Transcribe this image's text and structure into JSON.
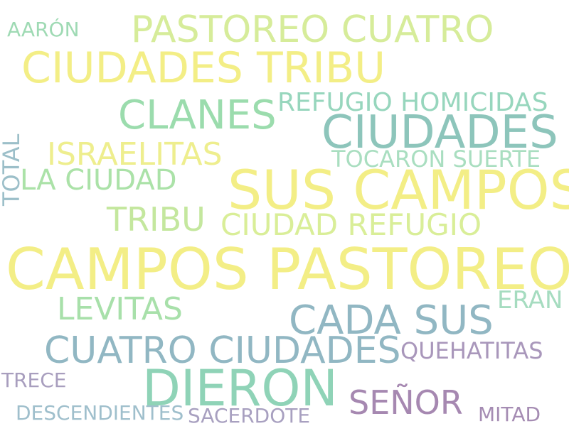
{
  "words": [
    {
      "text": "CAMPOS PASTOREO",
      "color": "#f3ee86"
    },
    {
      "text": "SUS CAMPOS",
      "color": "#f3ee86"
    },
    {
      "text": "CIUDADES",
      "color": "#8dc5bb"
    },
    {
      "text": "CIUDADES TRIBU",
      "color": "#f3ee86"
    },
    {
      "text": "DIERON",
      "color": "#8fd3b7"
    },
    {
      "text": "CUATRO CIUDADES",
      "color": "#91b7c3"
    },
    {
      "text": "CADA SUS",
      "color": "#91b7c3"
    },
    {
      "text": "PASTOREO CUATRO",
      "color": "#d6ec9a"
    },
    {
      "text": "CLANES",
      "color": "#9bdcad"
    },
    {
      "text": "ISRAELITAS",
      "color": "#eeee8e"
    },
    {
      "text": "LEVITAS",
      "color": "#a8e0aa"
    },
    {
      "text": "CIUDAD REFUGIO",
      "color": "#d9ee98"
    },
    {
      "text": "TRIBU",
      "color": "#c4e79e"
    },
    {
      "text": "LA CIUDAD",
      "color": "#abe2a8"
    },
    {
      "text": "REFUGIO HOMICIDAS",
      "color": "#97d6bd"
    },
    {
      "text": "TOCARON SUERTE",
      "color": "#a9dec0"
    },
    {
      "text": "SEÑOR",
      "color": "#a688b1"
    },
    {
      "text": "QUEHATITAS",
      "color": "#a997bb"
    },
    {
      "text": "ERAN",
      "color": "#a6dcc0"
    },
    {
      "text": "AARÓN",
      "color": "#9fdab4"
    },
    {
      "text": "TRECE",
      "color": "#a89ebe"
    },
    {
      "text": "DESCENDIENTES",
      "color": "#9fbfcc"
    },
    {
      "text": "SACERDOTE",
      "color": "#a8a0c0"
    },
    {
      "text": "MITAD",
      "color": "#a58cb3"
    },
    {
      "text": "TOTAL",
      "color": "#9cbfc9"
    }
  ]
}
